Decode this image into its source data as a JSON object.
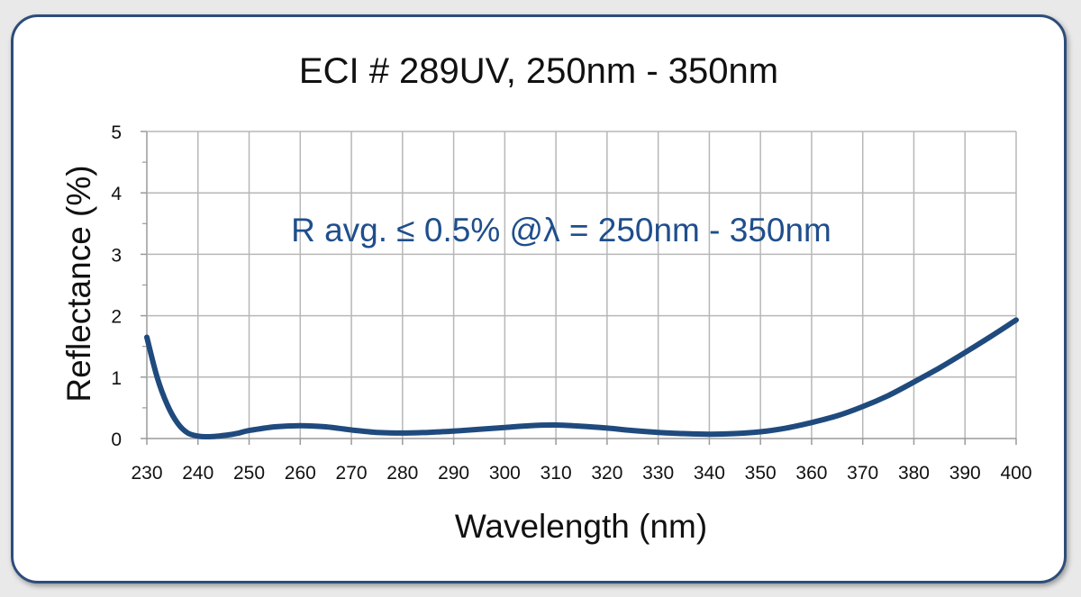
{
  "chart_data": {
    "type": "line",
    "title": "ECI # 289UV, 250nm - 350nm",
    "annotation": "R avg. ≤ 0.5% @λ = 250nm - 350nm",
    "xlabel": "Wavelength (nm)",
    "ylabel": "Reflectance (%)",
    "xlim": [
      230,
      400
    ],
    "ylim": [
      0,
      5
    ],
    "x_ticks": [
      230,
      240,
      250,
      260,
      270,
      280,
      290,
      300,
      310,
      320,
      330,
      340,
      350,
      360,
      370,
      380,
      390,
      400
    ],
    "y_ticks": [
      0,
      1,
      2,
      3,
      4,
      5
    ],
    "grid": true,
    "colors": {
      "line": "#1f4a7e",
      "annotation": "#1f4e8c",
      "frame": "#2d4d7a"
    },
    "series": [
      {
        "x": [
          230,
          232,
          234,
          236,
          238,
          240,
          242,
          244,
          246,
          248,
          250,
          255,
          260,
          265,
          270,
          275,
          280,
          285,
          290,
          295,
          300,
          305,
          310,
          315,
          320,
          325,
          330,
          335,
          340,
          345,
          350,
          355,
          360,
          365,
          370,
          375,
          380,
          385,
          390,
          395,
          400
        ],
        "values": [
          1.65,
          1.0,
          0.55,
          0.25,
          0.09,
          0.04,
          0.03,
          0.04,
          0.06,
          0.09,
          0.13,
          0.19,
          0.21,
          0.19,
          0.14,
          0.1,
          0.09,
          0.1,
          0.12,
          0.15,
          0.18,
          0.21,
          0.22,
          0.2,
          0.17,
          0.13,
          0.1,
          0.08,
          0.07,
          0.08,
          0.11,
          0.17,
          0.26,
          0.37,
          0.52,
          0.7,
          0.92,
          1.15,
          1.4,
          1.66,
          1.93
        ]
      }
    ]
  }
}
